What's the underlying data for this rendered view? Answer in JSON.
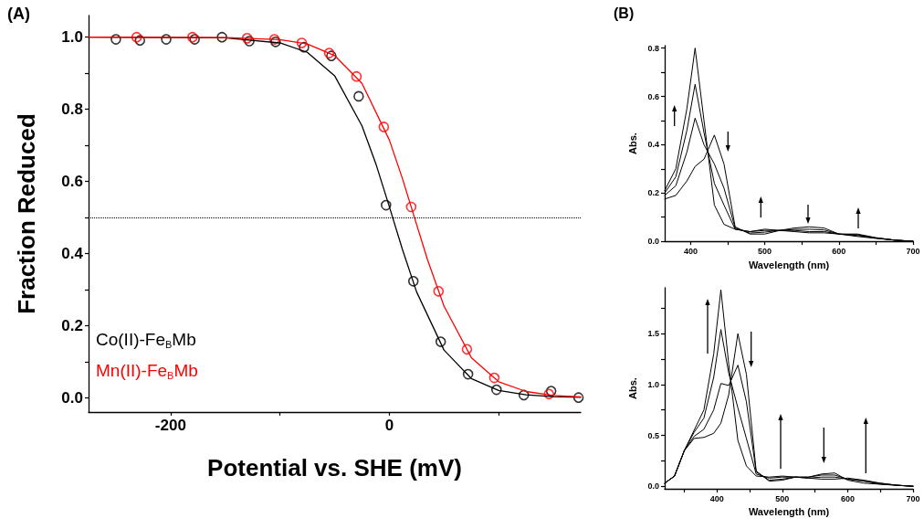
{
  "chart_data": [
    {
      "type": "scatter",
      "xlabel": "Potential vs. SHE (mV)",
      "ylabel": "Fraction Reduced",
      "annotations": [
        "(A)"
      ],
      "xlim": [
        -275,
        175
      ],
      "ylim": [
        -0.04,
        1.06
      ],
      "xticks": [
        -200,
        {
          "value": -100,
          "label": null
        },
        0,
        {
          "value": 100,
          "label": null
        }
      ],
      "yticks": [
        {
          "value": 0,
          "label": "0.0"
        },
        {
          "value": 0.1,
          "label": null
        },
        0.2,
        {
          "value": 0.3,
          "label": null
        },
        0.4,
        {
          "value": 0.5,
          "label": null
        },
        0.6,
        {
          "value": 0.7,
          "label": null
        },
        0.8,
        {
          "value": 0.9,
          "label": null
        },
        {
          "value": 1,
          "label": "1.0"
        }
      ],
      "grid": false,
      "legend": "bottom left",
      "marker": "circle",
      "ref_lines": [
        {
          "axis": "y",
          "value": 0.5,
          "color": "#000000",
          "line_style": "dotted"
        }
      ],
      "series": [
        {
          "type": "line",
          "marker": "none",
          "color": "#000000",
          "x": [
            -275,
            -150,
            -100,
            -75,
            -50,
            -25,
            -12,
            0,
            12,
            25,
            50,
            75,
            100,
            125,
            150,
            175
          ],
          "values": [
            1.0,
            0.998,
            0.984,
            0.958,
            0.893,
            0.754,
            0.646,
            0.53,
            0.411,
            0.293,
            0.132,
            0.053,
            0.02,
            0.008,
            0.003,
            0.001
          ]
        },
        {
          "type": "line",
          "marker": "none",
          "color": "#ff0000",
          "x": [
            -275,
            -150,
            -100,
            -75,
            -50,
            -25,
            0,
            12,
            25,
            35,
            50,
            75,
            100,
            125,
            150,
            175
          ],
          "values": [
            1.0,
            0.999,
            0.993,
            0.981,
            0.949,
            0.872,
            0.715,
            0.608,
            0.48,
            0.382,
            0.254,
            0.111,
            0.044,
            0.017,
            0.006,
            0.002
          ]
        },
        {
          "name": "Co(II)-Fe$_{B}$Mb",
          "color": "#000000",
          "x": [
            -250,
            -228,
            -204,
            -178,
            -153,
            -128,
            -104,
            -78,
            -53,
            -28,
            -3,
            22,
            47,
            72,
            98,
            123,
            148,
            173
          ],
          "values": [
            0.994,
            0.991,
            0.994,
            0.994,
            1.0,
            0.989,
            0.987,
            0.972,
            0.948,
            0.836,
            0.534,
            0.323,
            0.155,
            0.065,
            0.022,
            0.007,
            0.018,
            0.0
          ]
        },
        {
          "name": "Mn(II)-Fe$_{B}$Mb",
          "color": "#ff0000",
          "x": [
            -231,
            -180,
            -130,
            -105,
            -80,
            -55,
            -30,
            -5,
            20,
            45,
            71,
            96,
            146
          ],
          "values": [
            1.0,
            1.0,
            0.997,
            0.994,
            0.984,
            0.956,
            0.891,
            0.751,
            0.529,
            0.295,
            0.134,
            0.055,
            0.01
          ]
        }
      ]
    },
    {
      "type": "line",
      "xlabel": "Wavelength (nm)",
      "ylabel": "Abs.",
      "annotations": [
        "(B)"
      ],
      "xlim": [
        365,
        700
      ],
      "ylim": [
        0,
        0.81
      ],
      "xticks": [
        400,
        {
          "value": 450,
          "label": null
        },
        500,
        {
          "value": 550,
          "label": null
        },
        600,
        {
          "value": 650,
          "label": null
        },
        700
      ],
      "yticks": [
        {
          "value": 0,
          "label": "0.0"
        },
        {
          "value": 0.1,
          "label": null
        },
        0.2,
        {
          "value": 0.3,
          "label": null
        },
        0.4,
        {
          "value": 0.5,
          "label": null
        },
        0.6,
        {
          "value": 0.7,
          "label": null
        },
        0.8
      ],
      "grid": false,
      "marker": "none",
      "x": [
        365,
        380,
        395,
        406,
        418,
        432,
        445,
        460,
        480,
        500,
        520,
        540,
        560,
        580,
        600,
        625,
        650,
        675,
        700
      ],
      "series": [
        {
          "color": "#000000",
          "values": [
            0.175,
            0.19,
            0.25,
            0.31,
            0.34,
            0.44,
            0.32,
            0.06,
            0.03,
            0.03,
            0.045,
            0.055,
            0.06,
            0.055,
            0.03,
            0.02,
            0.012,
            0.005,
            0.0
          ]
        },
        {
          "color": "#000000",
          "values": [
            0.19,
            0.23,
            0.37,
            0.51,
            0.4,
            0.32,
            0.22,
            0.055,
            0.034,
            0.038,
            0.045,
            0.049,
            0.05,
            0.047,
            0.03,
            0.024,
            0.013,
            0.005,
            0.0
          ]
        },
        {
          "color": "#000000",
          "values": [
            0.2,
            0.267,
            0.46,
            0.65,
            0.45,
            0.24,
            0.15,
            0.05,
            0.04,
            0.045,
            0.045,
            0.045,
            0.04,
            0.04,
            0.03,
            0.027,
            0.014,
            0.005,
            0.0
          ]
        },
        {
          "color": "#000000",
          "values": [
            0.21,
            0.3,
            0.55,
            0.8,
            0.5,
            0.15,
            0.07,
            0.05,
            0.04,
            0.05,
            0.045,
            0.04,
            0.035,
            0.035,
            0.03,
            0.03,
            0.015,
            0.005,
            0.0
          ]
        }
      ]
    },
    {
      "type": "line",
      "xlabel": "Wavelength (nm)",
      "ylabel": "Abs.",
      "xlim": [
        320,
        700
      ],
      "ylim": [
        -0.025,
        1.95
      ],
      "xticks": [
        {
          "value": 350,
          "label": null
        },
        400,
        {
          "value": 450,
          "label": null
        },
        500,
        {
          "value": 550,
          "label": null
        },
        600,
        {
          "value": 650,
          "label": null
        },
        700
      ],
      "yticks": [
        {
          "value": 0,
          "label": "0.0"
        },
        {
          "value": 0.25,
          "label": null
        },
        0.5,
        {
          "value": 0.75,
          "label": null
        },
        {
          "value": 1,
          "label": "1.0"
        },
        {
          "value": 1.25,
          "label": null
        },
        1.5,
        {
          "value": 1.75,
          "label": null
        }
      ],
      "grid": false,
      "marker": "none",
      "x": [
        320,
        335,
        350,
        365,
        380,
        395,
        406,
        418,
        432,
        445,
        460,
        480,
        500,
        520,
        540,
        560,
        580,
        600,
        625,
        650,
        675,
        700
      ],
      "series": [
        {
          "color": "#000000",
          "values": [
            0.03,
            0.1,
            0.35,
            0.47,
            0.48,
            0.52,
            0.62,
            0.9,
            1.5,
            1.1,
            0.15,
            0.05,
            0.06,
            0.09,
            0.09,
            0.12,
            0.13,
            0.06,
            0.03,
            0.02,
            0.01,
            0.0
          ]
        },
        {
          "color": "#000000",
          "values": [
            0.03,
            0.1,
            0.35,
            0.49,
            0.56,
            0.75,
            1.01,
            0.99,
            1.19,
            0.83,
            0.14,
            0.06,
            0.07,
            0.09,
            0.09,
            0.11,
            0.11,
            0.07,
            0.05,
            0.02,
            0.01,
            0.0
          ]
        },
        {
          "color": "#000000",
          "values": [
            0.03,
            0.1,
            0.35,
            0.53,
            0.67,
            1.07,
            1.54,
            1.11,
            0.77,
            0.47,
            0.12,
            0.08,
            0.09,
            0.09,
            0.08,
            0.09,
            0.09,
            0.07,
            0.05,
            0.03,
            0.01,
            0.0
          ]
        },
        {
          "color": "#000000",
          "values": [
            0.03,
            0.1,
            0.35,
            0.55,
            0.75,
            1.3,
            1.93,
            1.2,
            0.45,
            0.2,
            0.1,
            0.09,
            0.1,
            0.09,
            0.08,
            0.07,
            0.07,
            0.08,
            0.06,
            0.03,
            0.01,
            0.0
          ]
        }
      ]
    }
  ]
}
